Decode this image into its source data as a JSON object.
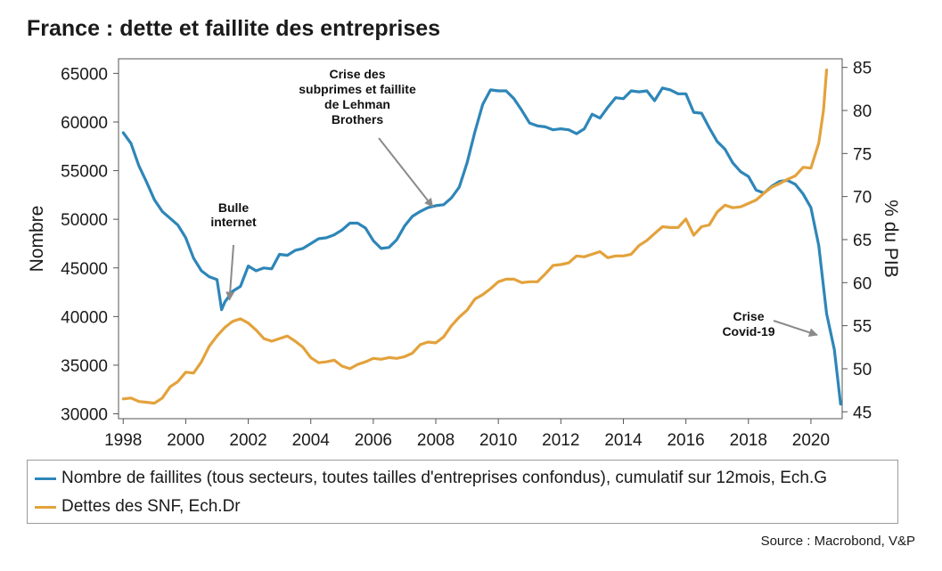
{
  "title": "France : dette et faillite des entreprises",
  "source": "Source : Macrobond, V&P",
  "colors": {
    "faillites": "#2e86b8",
    "dettes": "#e3a23c",
    "arrow": "#8a8a8a",
    "frame": "#555555"
  },
  "chart_data": {
    "type": "line",
    "xlim": [
      1997.85,
      2021.0
    ],
    "ylim_left": [
      29500,
      66500
    ],
    "ylim_right": [
      44.2,
      86.0
    ],
    "ylabel_left": "Nombre",
    "ylabel_right": "% du PIB",
    "x_ticks": [
      "1998",
      "2000",
      "2002",
      "2004",
      "2006",
      "2008",
      "2010",
      "2012",
      "2014",
      "2016",
      "2018",
      "2020"
    ],
    "y_ticks_left": [
      "30000",
      "35000",
      "40000",
      "45000",
      "50000",
      "55000",
      "60000",
      "65000"
    ],
    "y_ticks_right": [
      "45",
      "50",
      "55",
      "60",
      "65",
      "70",
      "75",
      "80",
      "85"
    ],
    "legend_position": "bottom",
    "series": [
      {
        "name": "Nombre de faillites (tous secteurs, toutes tailles d'entreprises confondus), cumulatif sur 12mois, Ech.G",
        "axis": "left",
        "points": [
          [
            1998.0,
            58900
          ],
          [
            1998.25,
            57800
          ],
          [
            1998.5,
            55500
          ],
          [
            1998.75,
            53800
          ],
          [
            1999.0,
            52000
          ],
          [
            1999.25,
            50800
          ],
          [
            1999.5,
            50100
          ],
          [
            1999.75,
            49400
          ],
          [
            2000.0,
            48100
          ],
          [
            2000.25,
            46000
          ],
          [
            2000.5,
            44700
          ],
          [
            2000.75,
            44100
          ],
          [
            2001.0,
            43800
          ],
          [
            2001.15,
            40700
          ],
          [
            2001.25,
            41500
          ],
          [
            2001.5,
            42600
          ],
          [
            2001.75,
            43100
          ],
          [
            2002.0,
            45200
          ],
          [
            2002.25,
            44700
          ],
          [
            2002.5,
            45000
          ],
          [
            2002.75,
            44900
          ],
          [
            2003.0,
            46400
          ],
          [
            2003.25,
            46300
          ],
          [
            2003.5,
            46800
          ],
          [
            2003.75,
            47000
          ],
          [
            2004.0,
            47500
          ],
          [
            2004.25,
            48000
          ],
          [
            2004.5,
            48100
          ],
          [
            2004.75,
            48400
          ],
          [
            2005.0,
            48900
          ],
          [
            2005.25,
            49600
          ],
          [
            2005.5,
            49600
          ],
          [
            2005.75,
            49100
          ],
          [
            2006.0,
            47800
          ],
          [
            2006.25,
            47000
          ],
          [
            2006.5,
            47100
          ],
          [
            2006.75,
            47900
          ],
          [
            2007.0,
            49300
          ],
          [
            2007.25,
            50300
          ],
          [
            2007.5,
            50800
          ],
          [
            2007.75,
            51200
          ],
          [
            2008.0,
            51400
          ],
          [
            2008.25,
            51500
          ],
          [
            2008.5,
            52200
          ],
          [
            2008.75,
            53300
          ],
          [
            2009.0,
            55800
          ],
          [
            2009.25,
            59000
          ],
          [
            2009.5,
            61800
          ],
          [
            2009.75,
            63300
          ],
          [
            2010.0,
            63200
          ],
          [
            2010.25,
            63200
          ],
          [
            2010.5,
            62400
          ],
          [
            2010.75,
            61200
          ],
          [
            2011.0,
            59900
          ],
          [
            2011.25,
            59600
          ],
          [
            2011.5,
            59500
          ],
          [
            2011.75,
            59200
          ],
          [
            2012.0,
            59300
          ],
          [
            2012.25,
            59200
          ],
          [
            2012.5,
            58800
          ],
          [
            2012.75,
            59300
          ],
          [
            2013.0,
            60800
          ],
          [
            2013.25,
            60400
          ],
          [
            2013.5,
            61500
          ],
          [
            2013.75,
            62500
          ],
          [
            2014.0,
            62400
          ],
          [
            2014.25,
            63200
          ],
          [
            2014.5,
            63100
          ],
          [
            2014.75,
            63200
          ],
          [
            2015.0,
            62200
          ],
          [
            2015.25,
            63500
          ],
          [
            2015.5,
            63300
          ],
          [
            2015.75,
            62900
          ],
          [
            2016.0,
            62900
          ],
          [
            2016.25,
            61000
          ],
          [
            2016.5,
            60900
          ],
          [
            2016.75,
            59400
          ],
          [
            2017.0,
            58000
          ],
          [
            2017.25,
            57200
          ],
          [
            2017.5,
            55800
          ],
          [
            2017.75,
            54900
          ],
          [
            2018.0,
            54400
          ],
          [
            2018.25,
            53000
          ],
          [
            2018.5,
            52700
          ],
          [
            2018.75,
            53400
          ],
          [
            2019.0,
            53900
          ],
          [
            2019.25,
            54000
          ],
          [
            2019.5,
            53600
          ],
          [
            2019.75,
            52600
          ],
          [
            2020.0,
            51200
          ],
          [
            2020.25,
            47300
          ],
          [
            2020.5,
            40300
          ],
          [
            2020.75,
            36600
          ],
          [
            2020.95,
            31000
          ]
        ]
      },
      {
        "name": "Dettes des SNF, Ech.Dr",
        "axis": "right",
        "points": [
          [
            1998.0,
            46.5
          ],
          [
            1998.25,
            46.6
          ],
          [
            1998.5,
            46.2
          ],
          [
            1998.75,
            46.1
          ],
          [
            1999.0,
            46.0
          ],
          [
            1999.25,
            46.6
          ],
          [
            1999.5,
            47.9
          ],
          [
            1999.75,
            48.5
          ],
          [
            2000.0,
            49.6
          ],
          [
            2000.25,
            49.5
          ],
          [
            2000.5,
            50.8
          ],
          [
            2000.75,
            52.6
          ],
          [
            2001.0,
            53.8
          ],
          [
            2001.25,
            54.8
          ],
          [
            2001.5,
            55.5
          ],
          [
            2001.75,
            55.8
          ],
          [
            2002.0,
            55.3
          ],
          [
            2002.25,
            54.5
          ],
          [
            2002.5,
            53.5
          ],
          [
            2002.75,
            53.2
          ],
          [
            2003.0,
            53.5
          ],
          [
            2003.25,
            53.8
          ],
          [
            2003.5,
            53.2
          ],
          [
            2003.75,
            52.5
          ],
          [
            2004.0,
            51.3
          ],
          [
            2004.25,
            50.7
          ],
          [
            2004.5,
            50.8
          ],
          [
            2004.75,
            51.0
          ],
          [
            2005.0,
            50.3
          ],
          [
            2005.25,
            50.0
          ],
          [
            2005.5,
            50.5
          ],
          [
            2005.75,
            50.8
          ],
          [
            2006.0,
            51.2
          ],
          [
            2006.25,
            51.1
          ],
          [
            2006.5,
            51.3
          ],
          [
            2006.75,
            51.2
          ],
          [
            2007.0,
            51.4
          ],
          [
            2007.25,
            51.8
          ],
          [
            2007.5,
            52.8
          ],
          [
            2007.75,
            53.1
          ],
          [
            2008.0,
            53.0
          ],
          [
            2008.25,
            53.7
          ],
          [
            2008.5,
            55.0
          ],
          [
            2008.75,
            56.0
          ],
          [
            2009.0,
            56.8
          ],
          [
            2009.25,
            58.1
          ],
          [
            2009.5,
            58.6
          ],
          [
            2009.75,
            59.3
          ],
          [
            2010.0,
            60.1
          ],
          [
            2010.25,
            60.4
          ],
          [
            2010.5,
            60.4
          ],
          [
            2010.75,
            60.0
          ],
          [
            2011.0,
            60.1
          ],
          [
            2011.25,
            60.1
          ],
          [
            2011.5,
            61.0
          ],
          [
            2011.75,
            62.0
          ],
          [
            2012.0,
            62.1
          ],
          [
            2012.25,
            62.3
          ],
          [
            2012.5,
            63.1
          ],
          [
            2012.75,
            63.0
          ],
          [
            2013.0,
            63.3
          ],
          [
            2013.25,
            63.6
          ],
          [
            2013.5,
            62.9
          ],
          [
            2013.75,
            63.1
          ],
          [
            2014.0,
            63.1
          ],
          [
            2014.25,
            63.3
          ],
          [
            2014.5,
            64.3
          ],
          [
            2014.75,
            64.9
          ],
          [
            2015.0,
            65.7
          ],
          [
            2015.25,
            66.5
          ],
          [
            2015.5,
            66.4
          ],
          [
            2015.75,
            66.4
          ],
          [
            2016.0,
            67.4
          ],
          [
            2016.25,
            65.5
          ],
          [
            2016.5,
            66.5
          ],
          [
            2016.75,
            66.7
          ],
          [
            2017.0,
            68.2
          ],
          [
            2017.25,
            69.0
          ],
          [
            2017.5,
            68.7
          ],
          [
            2017.75,
            68.8
          ],
          [
            2018.0,
            69.2
          ],
          [
            2018.25,
            69.6
          ],
          [
            2018.5,
            70.4
          ],
          [
            2018.75,
            71.1
          ],
          [
            2019.0,
            71.5
          ],
          [
            2019.25,
            72.0
          ],
          [
            2019.5,
            72.4
          ],
          [
            2019.75,
            73.4
          ],
          [
            2020.0,
            73.3
          ],
          [
            2020.25,
            76.2
          ],
          [
            2020.4,
            80.0
          ],
          [
            2020.5,
            84.7
          ]
        ]
      }
    ],
    "annotations": [
      {
        "lines": [
          "Bulle",
          "internet"
        ],
        "target": [
          2001.4,
          58.0
        ],
        "target_axis": "right",
        "anchor": "below"
      },
      {
        "lines": [
          "Crise des",
          "subprimes et faillite",
          "de Lehman",
          "Brothers"
        ],
        "target": [
          2007.9,
          51300
        ],
        "target_axis": "left",
        "anchor": "below"
      },
      {
        "lines": [
          "Crise",
          "Covid-19"
        ],
        "target": [
          2020.2,
          38100
        ],
        "target_axis": "left",
        "anchor": "right"
      }
    ]
  }
}
